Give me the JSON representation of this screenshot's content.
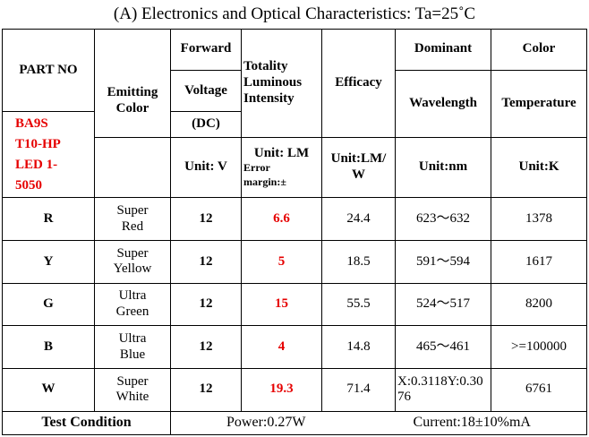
{
  "title": "(A) Electronics and Optical Characteristics: Ta=25˚C",
  "headers": {
    "part_no": "PART NO",
    "part_model_lines": [
      "BA9S",
      "T10-HP",
      "LED 1-",
      "5050"
    ],
    "emitting_color_line1": "Emitting",
    "emitting_color_line2": "Color",
    "forward_voltage_line1": "Forward",
    "forward_voltage_line2": "Voltage",
    "forward_voltage_line3": "(DC)",
    "luminous_line1": "Totality",
    "luminous_line2": "Luminous",
    "luminous_line3": "Intensity",
    "efficacy": "Efficacy",
    "dominant_line1": "Dominant",
    "dominant_line2": "Wavelength",
    "color_temp_line1": "Color",
    "color_temp_line2": "Temperature"
  },
  "units": {
    "voltage": "Unit: V",
    "luminous": "Unit: LM",
    "luminous_note_line1": "Error",
    "luminous_note_line2": "margin:±",
    "efficacy_line1": "Unit:LM/",
    "efficacy_line2": "W",
    "wavelength": "Unit:nm",
    "color_temp": "Unit:K"
  },
  "rows": [
    {
      "code": "R",
      "color_line1": "Super",
      "color_line2": "Red",
      "voltage": "12",
      "lumen": "6.6",
      "efficacy": "24.4",
      "wavelength": "623～632",
      "color_temp": "1378"
    },
    {
      "code": "Y",
      "color_line1": "Super",
      "color_line2": "Yellow",
      "voltage": "12",
      "lumen": "5",
      "efficacy": "18.5",
      "wavelength": "591～594",
      "color_temp": "1617"
    },
    {
      "code": "G",
      "color_line1": "Ultra",
      "color_line2": "Green",
      "voltage": "12",
      "lumen": "15",
      "efficacy": "55.5",
      "wavelength": "524～517",
      "color_temp": "8200"
    },
    {
      "code": "B",
      "color_line1": "Ultra",
      "color_line2": "Blue",
      "voltage": "12",
      "lumen": "4",
      "efficacy": "14.8",
      "wavelength": "465～461",
      "color_temp": ">=100000"
    },
    {
      "code": "W",
      "color_line1": "Super",
      "color_line2": "White",
      "voltage": "12",
      "lumen": "19.3",
      "efficacy": "71.4",
      "wavelength": "X:0.3118Y:0.3076",
      "color_temp": "6761"
    }
  ],
  "footer": {
    "label": "Test Condition",
    "power": "Power:0.27W",
    "current": "Current:18±10%mA"
  },
  "colors": {
    "highlight": "#e60000",
    "border": "#000000"
  }
}
